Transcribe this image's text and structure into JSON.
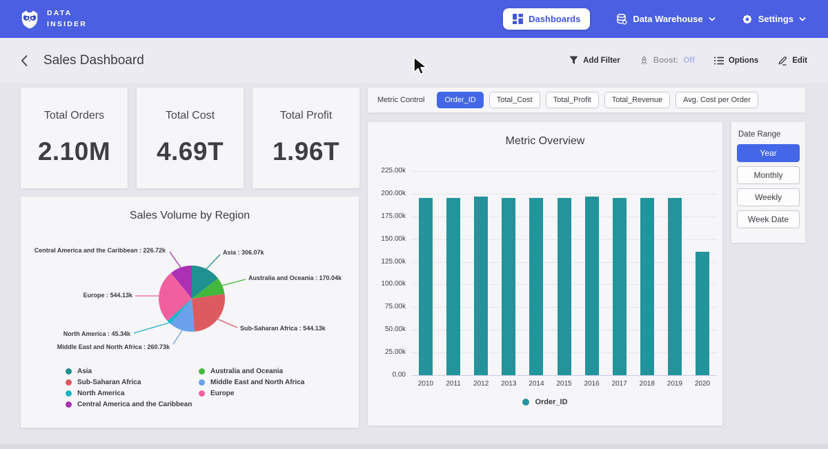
{
  "nav": {
    "brand_line1": "DATA",
    "brand_line2": "INSIDER",
    "dashboards_label": "Dashboards",
    "warehouse_label": "Data Warehouse",
    "settings_label": "Settings"
  },
  "header": {
    "title": "Sales Dashboard",
    "add_filter_label": "Add Filter",
    "boost_label": "Boost:",
    "boost_value": "Off",
    "options_label": "Options",
    "edit_label": "Edit"
  },
  "kpis": [
    {
      "label": "Total Orders",
      "value": "2.10M"
    },
    {
      "label": "Total Cost",
      "value": "4.69T"
    },
    {
      "label": "Total Profit",
      "value": "1.96T"
    }
  ],
  "metric_control": {
    "label": "Metric Control",
    "options": [
      "Order_ID",
      "Total_Cost",
      "Total_Profit",
      "Total_Revenue",
      "Avg. Cost per Order"
    ],
    "selected": "Order_ID"
  },
  "date_range": {
    "label": "Date Range",
    "options": [
      "Year",
      "Monthly",
      "Weekly",
      "Week Date"
    ],
    "selected": "Year"
  },
  "colors": {
    "nav_blue": "#4a5fe2",
    "accent_blue": "#4467e8",
    "bar_teal": "#23949b",
    "boost_off": "#a9b6ee"
  },
  "chart_data": [
    {
      "type": "pie",
      "title": "Sales Volume by Region",
      "unit": "orders",
      "slices": [
        {
          "label": "Asia",
          "value": 306070,
          "display": "306.07k",
          "color": "#1f9190"
        },
        {
          "label": "Australia and Oceania",
          "value": 170040,
          "display": "170.04k",
          "color": "#43b83c"
        },
        {
          "label": "Sub-Saharan Africa",
          "value": 544130,
          "display": "544.13k",
          "color": "#dd5a60"
        },
        {
          "label": "Middle East and North Africa",
          "value": 260730,
          "display": "260.73k",
          "color": "#6ba1ea"
        },
        {
          "label": "North America",
          "value": 45340,
          "display": "45.34k",
          "color": "#1cb4c8"
        },
        {
          "label": "Europe",
          "value": 544130,
          "display": "544.13k",
          "color": "#f0609e"
        },
        {
          "label": "Central America and the Caribbean",
          "value": 226720,
          "display": "226.72k",
          "color": "#ab30b4"
        }
      ],
      "legend_position": "bottom",
      "start_angle_deg": 0,
      "direction": "clockwise"
    },
    {
      "type": "bar",
      "title": "Metric Overview",
      "categories": [
        "2010",
        "2011",
        "2012",
        "2013",
        "2014",
        "2015",
        "2016",
        "2017",
        "2018",
        "2019",
        "2020"
      ],
      "series": [
        {
          "name": "Order_ID",
          "color": "#23949b",
          "values": [
            195500,
            195500,
            196600,
            195500,
            195400,
            195500,
            196600,
            195500,
            195500,
            195500,
            136100
          ]
        }
      ],
      "xlabel": "",
      "ylabel": "",
      "ylim": [
        0,
        225000
      ],
      "grid": true,
      "legend_position": "bottom",
      "y_ticks": [
        {
          "v": 0,
          "label": "0.00"
        },
        {
          "v": 25000,
          "label": "25.00k"
        },
        {
          "v": 50000,
          "label": "50.00k"
        },
        {
          "v": 75000,
          "label": "75.00k"
        },
        {
          "v": 100000,
          "label": "100.00k"
        },
        {
          "v": 125000,
          "label": "125.00k"
        },
        {
          "v": 150000,
          "label": "150.00k"
        },
        {
          "v": 175000,
          "label": "175.00k"
        },
        {
          "v": 200000,
          "label": "200.00k"
        },
        {
          "v": 225000,
          "label": "225.00k"
        }
      ]
    }
  ]
}
